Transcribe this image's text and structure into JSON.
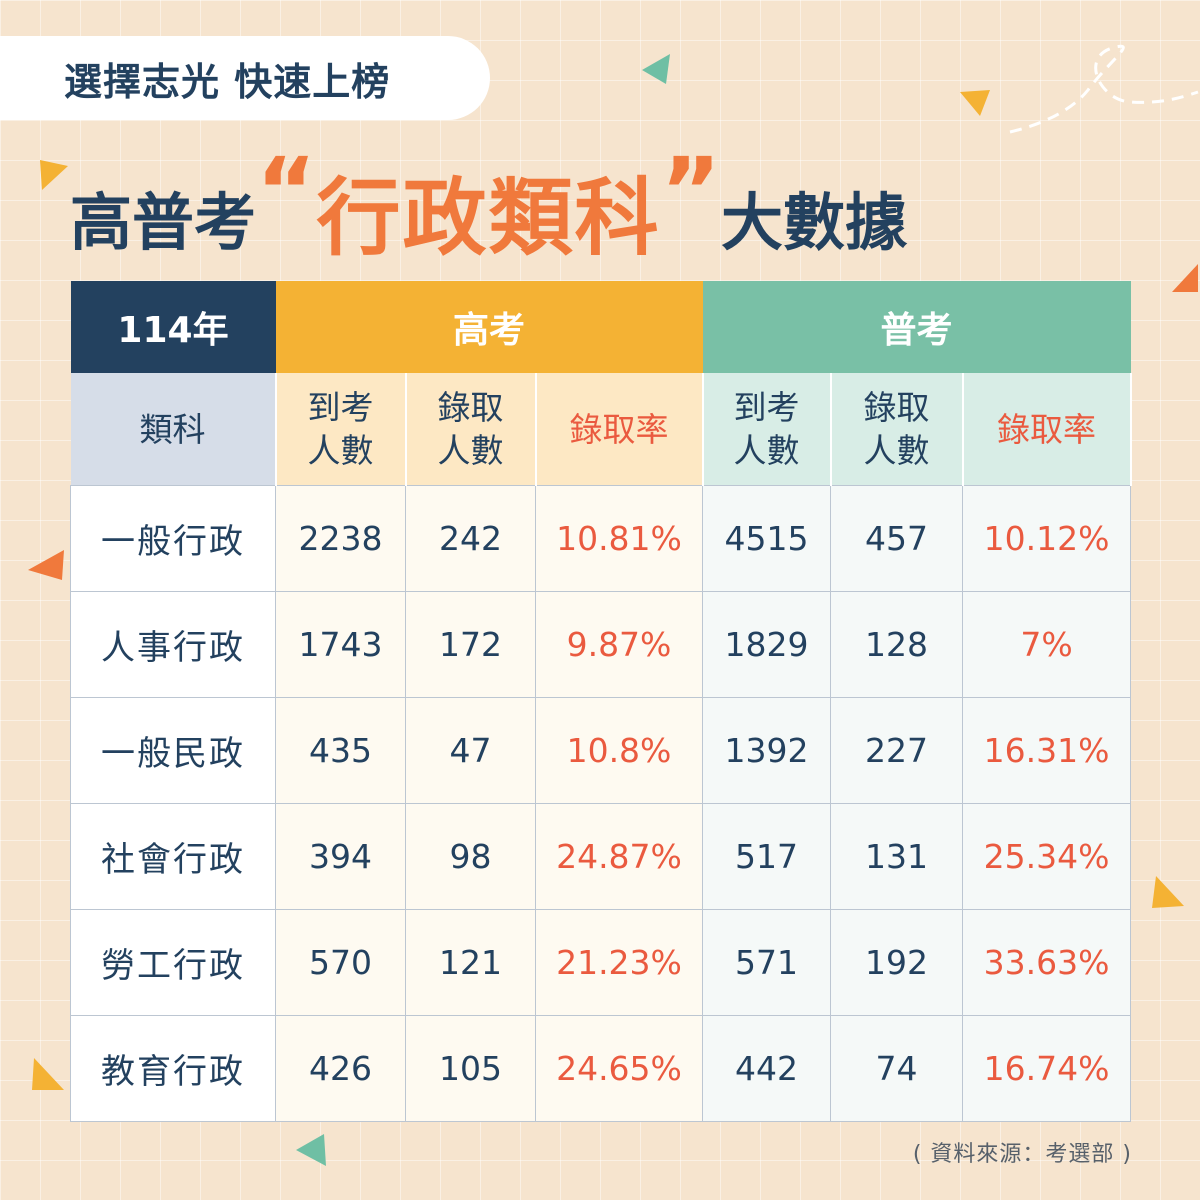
{
  "tagline": "選擇志光 快速上榜",
  "headline": {
    "part1": "高普考",
    "open_quote": "“",
    "highlight": "行政類科",
    "close_quote": "”",
    "part2": "大數據"
  },
  "table": {
    "year": "114年",
    "group_gao": "高考",
    "group_pu": "普考",
    "category_header": "類科",
    "sub_attend": "到考\n人數",
    "sub_admit": "錄取\n人數",
    "sub_rate": "錄取率",
    "rows": [
      {
        "name": "一般行政",
        "gao_attend": "2238",
        "gao_admit": "242",
        "gao_rate": "10.81%",
        "pu_attend": "4515",
        "pu_admit": "457",
        "pu_rate": "10.12%"
      },
      {
        "name": "人事行政",
        "gao_attend": "1743",
        "gao_admit": "172",
        "gao_rate": "9.87%",
        "pu_attend": "1829",
        "pu_admit": "128",
        "pu_rate": "7%"
      },
      {
        "name": "一般民政",
        "gao_attend": "435",
        "gao_admit": "47",
        "gao_rate": "10.8%",
        "pu_attend": "1392",
        "pu_admit": "227",
        "pu_rate": "16.31%"
      },
      {
        "name": "社會行政",
        "gao_attend": "394",
        "gao_admit": "98",
        "gao_rate": "24.87%",
        "pu_attend": "517",
        "pu_admit": "131",
        "pu_rate": "25.34%"
      },
      {
        "name": "勞工行政",
        "gao_attend": "570",
        "gao_admit": "121",
        "gao_rate": "21.23%",
        "pu_attend": "571",
        "pu_admit": "192",
        "pu_rate": "33.63%"
      },
      {
        "name": "教育行政",
        "gao_attend": "426",
        "gao_admit": "105",
        "gao_rate": "24.65%",
        "pu_attend": "442",
        "pu_admit": "74",
        "pu_rate": "16.74%"
      }
    ]
  },
  "source": "( 資料來源：考選部 )",
  "colors": {
    "navy": "#23415f",
    "orange_accent": "#f0793c",
    "gao_yellow": "#f4b234",
    "pu_green": "#79c0a6",
    "rate_red": "#ea5a3f",
    "background": "#f6e4ce"
  }
}
